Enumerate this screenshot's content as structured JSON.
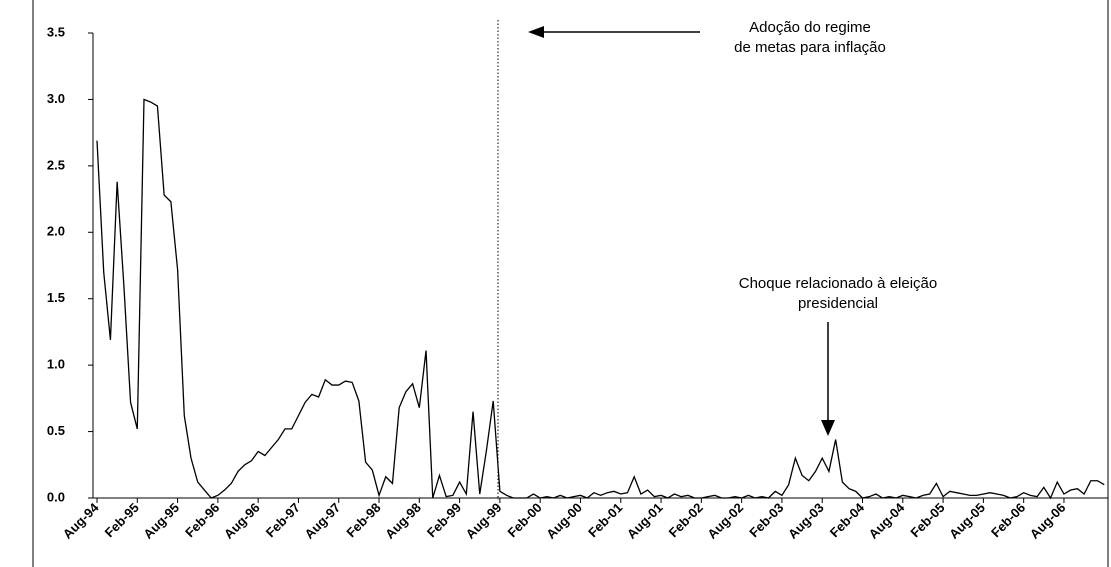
{
  "chart_data": {
    "type": "line",
    "categories": [
      "Aug-94",
      null,
      null,
      null,
      null,
      null,
      "Feb-95",
      null,
      null,
      null,
      null,
      null,
      "Aug-95",
      null,
      null,
      null,
      null,
      null,
      "Feb-96",
      null,
      null,
      null,
      null,
      null,
      "Aug-96",
      null,
      null,
      null,
      null,
      null,
      "Feb-97",
      null,
      null,
      null,
      null,
      null,
      "Aug-97",
      null,
      null,
      null,
      null,
      null,
      "Feb-98",
      null,
      null,
      null,
      null,
      null,
      "Aug-98",
      null,
      null,
      null,
      null,
      null,
      "Feb-99",
      null,
      null,
      null,
      null,
      null,
      "Aug-99",
      null,
      null,
      null,
      null,
      null,
      "Feb-00",
      null,
      null,
      null,
      null,
      null,
      "Aug-00",
      null,
      null,
      null,
      null,
      null,
      "Feb-01",
      null,
      null,
      null,
      null,
      null,
      "Aug-01",
      null,
      null,
      null,
      null,
      null,
      "Feb-02",
      null,
      null,
      null,
      null,
      null,
      "Aug-02",
      null,
      null,
      null,
      null,
      null,
      "Feb-03",
      null,
      null,
      null,
      null,
      null,
      "Aug-03",
      null,
      null,
      null,
      null,
      null,
      "Feb-04",
      null,
      null,
      null,
      null,
      null,
      "Aug-04",
      null,
      null,
      null,
      null,
      null,
      "Feb-05",
      null,
      null,
      null,
      null,
      null,
      "Aug-05",
      null,
      null,
      null,
      null,
      null,
      "Feb-06",
      null,
      null,
      null,
      null,
      null,
      "Aug-06",
      null,
      null,
      null,
      null,
      null,
      null
    ],
    "values": [
      2.69,
      1.7,
      1.19,
      2.38,
      1.6,
      0.72,
      0.52,
      3.0,
      2.98,
      2.95,
      2.28,
      2.23,
      1.72,
      0.62,
      0.3,
      0.12,
      0.06,
      0.0,
      0.02,
      0.06,
      0.11,
      0.2,
      0.25,
      0.28,
      0.35,
      0.32,
      0.38,
      0.44,
      0.52,
      0.52,
      0.62,
      0.72,
      0.78,
      0.76,
      0.89,
      0.85,
      0.85,
      0.88,
      0.87,
      0.73,
      0.27,
      0.21,
      0.02,
      0.16,
      0.11,
      0.68,
      0.8,
      0.86,
      0.68,
      1.11,
      0.0,
      0.17,
      0.01,
      0.02,
      0.12,
      0.03,
      0.65,
      0.03,
      0.36,
      0.73,
      0.05,
      0.02,
      0.0,
      0.0,
      0.0,
      0.03,
      0.0,
      0.01,
      0.0,
      0.02,
      0.0,
      0.01,
      0.02,
      0.0,
      0.04,
      0.02,
      0.04,
      0.05,
      0.03,
      0.04,
      0.16,
      0.03,
      0.06,
      0.01,
      0.02,
      0.0,
      0.03,
      0.01,
      0.02,
      0.0,
      0.0,
      0.01,
      0.02,
      0.0,
      0.0,
      0.01,
      0.0,
      0.02,
      0.0,
      0.01,
      0.0,
      0.05,
      0.02,
      0.1,
      0.3,
      0.17,
      0.13,
      0.2,
      0.3,
      0.2,
      0.44,
      0.12,
      0.07,
      0.05,
      0.0,
      0.01,
      0.03,
      0.0,
      0.01,
      0.0,
      0.02,
      0.01,
      0.0,
      0.02,
      0.03,
      0.11,
      0.01,
      0.05,
      0.04,
      0.03,
      0.02,
      0.02,
      0.03,
      0.04,
      0.03,
      0.02,
      0.0,
      0.01,
      0.04,
      0.02,
      0.01,
      0.08,
      0.0,
      0.12,
      0.03,
      0.06,
      0.07,
      0.03,
      0.13,
      0.13,
      0.1
    ],
    "color": "#000000",
    "ylim": [
      0,
      3.5
    ],
    "yticks": [
      {
        "value": 0,
        "label": "0.0"
      },
      0.5,
      {
        "value": 1,
        "label": "1.0"
      },
      1.5,
      {
        "value": 2,
        "label": "2.0"
      },
      2.5,
      {
        "value": 3,
        "label": "3.0"
      },
      3.5
    ],
    "annotations": [
      "Adoção do regime de metas para inflação",
      "Choque relacionado à eleição presidencial"
    ]
  }
}
